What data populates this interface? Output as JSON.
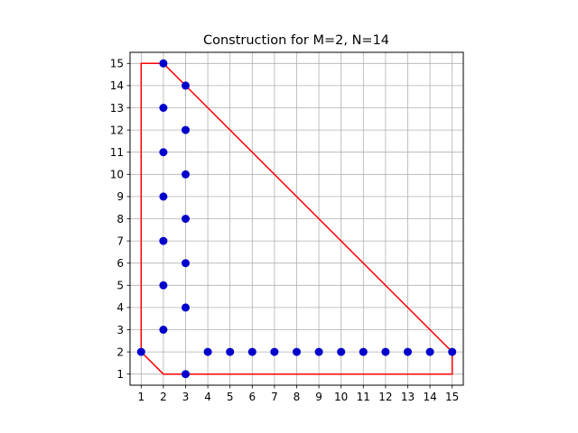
{
  "chart_data": {
    "type": "scatter",
    "title": "Construction for M=2, N=14",
    "xlabel": "",
    "ylabel": "",
    "xlim": [
      0.5,
      15.5
    ],
    "ylim": [
      0.5,
      15.5
    ],
    "x_ticks": [
      1,
      2,
      3,
      4,
      5,
      6,
      7,
      8,
      9,
      10,
      11,
      12,
      13,
      14,
      15
    ],
    "y_ticks": [
      1,
      2,
      3,
      4,
      5,
      6,
      7,
      8,
      9,
      10,
      11,
      12,
      13,
      14,
      15
    ],
    "grid": true,
    "series": [
      {
        "kind": "points",
        "color": "#0000cc",
        "points": [
          [
            1,
            2
          ],
          [
            3,
            1
          ],
          [
            2,
            3
          ],
          [
            2,
            5
          ],
          [
            2,
            7
          ],
          [
            2,
            9
          ],
          [
            2,
            11
          ],
          [
            2,
            13
          ],
          [
            2,
            15
          ],
          [
            3,
            4
          ],
          [
            3,
            6
          ],
          [
            3,
            8
          ],
          [
            3,
            10
          ],
          [
            3,
            12
          ],
          [
            3,
            14
          ],
          [
            4,
            2
          ],
          [
            5,
            2
          ],
          [
            6,
            2
          ],
          [
            7,
            2
          ],
          [
            8,
            2
          ],
          [
            9,
            2
          ],
          [
            10,
            2
          ],
          [
            11,
            2
          ],
          [
            12,
            2
          ],
          [
            13,
            2
          ],
          [
            14,
            2
          ],
          [
            15,
            2
          ]
        ]
      },
      {
        "kind": "outline",
        "color": "#ff0000",
        "points": [
          [
            1,
            2
          ],
          [
            2,
            1
          ],
          [
            15,
            1
          ],
          [
            15,
            2
          ],
          [
            3,
            14
          ],
          [
            2,
            15
          ],
          [
            1,
            15
          ],
          [
            1,
            2
          ]
        ]
      }
    ]
  }
}
